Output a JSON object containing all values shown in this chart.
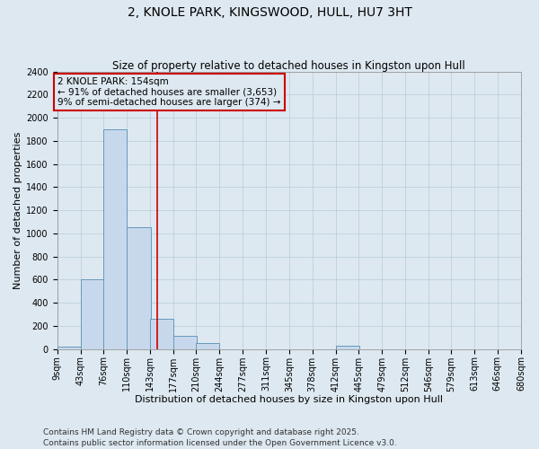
{
  "title": "2, KNOLE PARK, KINGSWOOD, HULL, HU7 3HT",
  "subtitle": "Size of property relative to detached houses in Kingston upon Hull",
  "xlabel": "Distribution of detached houses by size in Kingston upon Hull",
  "ylabel": "Number of detached properties",
  "footer": "Contains HM Land Registry data © Crown copyright and database right 2025.\nContains public sector information licensed under the Open Government Licence v3.0.",
  "bar_color": "#c8d8ec",
  "bar_edge_color": "#6699bb",
  "grid_color": "#b8ccd8",
  "background_color": "#dde8f0",
  "vline_color": "#cc0000",
  "annotation_text": "2 KNOLE PARK: 154sqm\n← 91% of detached houses are smaller (3,653)\n9% of semi-detached houses are larger (374) →",
  "annotation_box_color": "#cc0000",
  "property_size": 154,
  "bins": [
    9,
    43,
    76,
    110,
    143,
    177,
    210,
    244,
    277,
    311,
    345,
    378,
    412,
    445,
    479,
    512,
    546,
    579,
    613,
    646,
    680
  ],
  "counts": [
    20,
    600,
    1900,
    1050,
    265,
    115,
    55,
    0,
    0,
    0,
    0,
    0,
    25,
    0,
    0,
    0,
    0,
    0,
    0,
    0
  ],
  "ylim": [
    0,
    2400
  ],
  "yticks": [
    0,
    200,
    400,
    600,
    800,
    1000,
    1200,
    1400,
    1600,
    1800,
    2000,
    2200,
    2400
  ],
  "title_fontsize": 10,
  "subtitle_fontsize": 8.5,
  "axis_label_fontsize": 8,
  "tick_fontsize": 7,
  "annotation_fontsize": 7.5,
  "footer_fontsize": 6.5
}
